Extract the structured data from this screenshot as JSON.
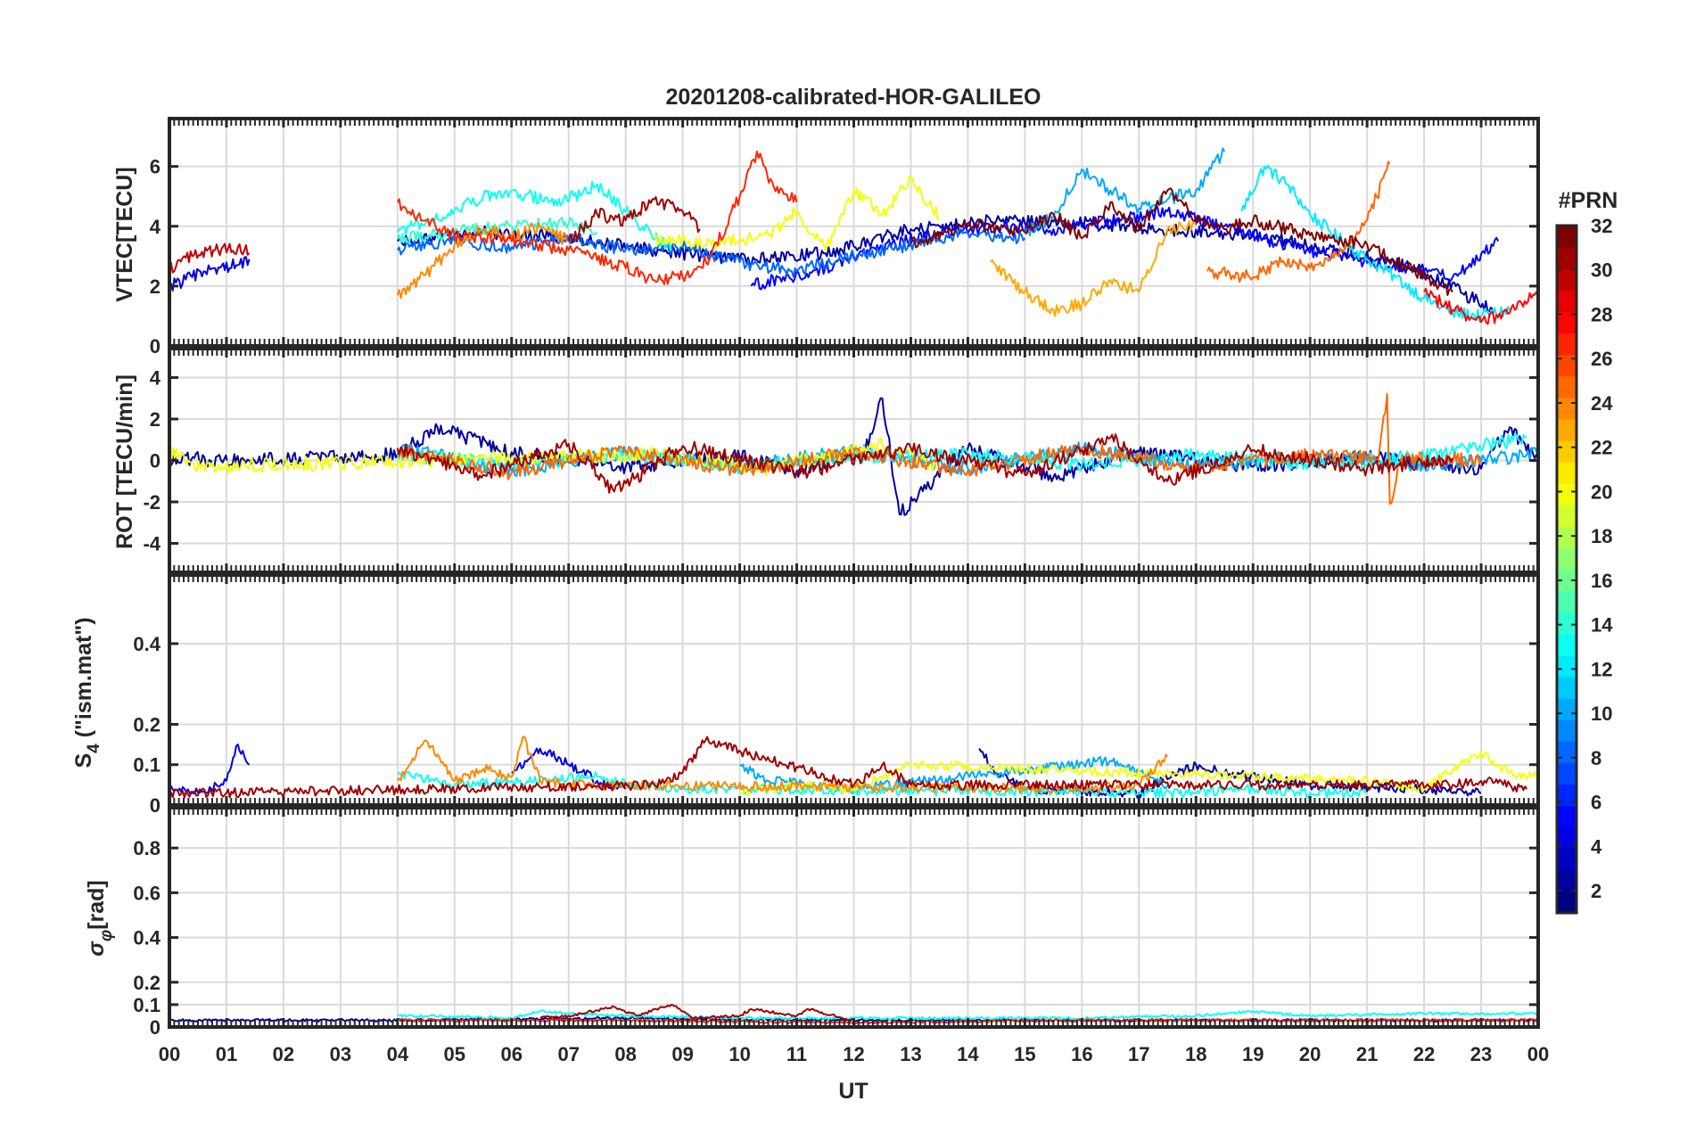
{
  "title": "20201208-calibrated-HOR-GALILEO",
  "chart_data": [
    {
      "type": "line",
      "panel": "vtec",
      "ylabel": "VTEC[TECU]",
      "xlabel": "",
      "xlim": [
        0,
        24
      ],
      "ylim": [
        0,
        7.6
      ],
      "yticks": [
        0,
        2,
        4,
        6
      ],
      "yticklabels": [
        "0",
        "2",
        "4",
        "6"
      ],
      "grid": true,
      "series": [
        {
          "name": "PRN 2",
          "prn": 2,
          "x": [
            4.0,
            5.5,
            7.0,
            8.5,
            10.0,
            11.5,
            13.0,
            14.5,
            16.0,
            17.5,
            19.0,
            20.5,
            22.0,
            23.2
          ],
          "y": [
            3.5,
            3.8,
            3.6,
            3.2,
            2.9,
            3.1,
            3.9,
            4.2,
            4.1,
            3.9,
            3.7,
            3.2,
            2.5,
            1.2
          ]
        },
        {
          "name": "PRN 4",
          "prn": 4,
          "x": [
            0.0,
            0.4,
            0.8,
            1.2,
            1.4
          ],
          "y": [
            2.0,
            2.3,
            2.6,
            2.7,
            2.9
          ]
        },
        {
          "name": "PRN 5",
          "prn": 5,
          "x": [
            10.2,
            11.5,
            12.5,
            13.5,
            14.5,
            15.5,
            16.5,
            17.5,
            18.5,
            19.5,
            20.5,
            21.5,
            22.5,
            23.3
          ],
          "y": [
            2.0,
            2.6,
            3.3,
            3.8,
            4.0,
            3.9,
            4.2,
            4.5,
            4.0,
            3.4,
            3.0,
            2.6,
            2.3,
            3.5
          ]
        },
        {
          "name": "PRN 8",
          "prn": 8,
          "x": [
            4.0,
            5.0,
            6.0,
            7.0,
            8.0,
            9.0,
            10.0,
            11.0,
            12.0,
            13.0,
            14.0,
            15.0
          ],
          "y": [
            3.2,
            3.5,
            3.3,
            3.6,
            3.2,
            3.3,
            2.8,
            2.5,
            3.0,
            3.4,
            3.8,
            3.6
          ]
        },
        {
          "name": "PRN 10",
          "prn": 10,
          "x": [
            15.0,
            15.5,
            16.0,
            16.5,
            17.0,
            17.5,
            18.0,
            18.5
          ],
          "y": [
            3.8,
            4.3,
            5.9,
            5.2,
            4.6,
            4.9,
            5.2,
            6.5
          ]
        },
        {
          "name": "PRN 12",
          "prn": 12,
          "x": [
            18.8,
            19.2,
            19.6,
            20.0,
            20.5,
            21.0,
            21.5,
            22.0,
            22.5,
            23.0,
            23.5
          ],
          "y": [
            4.5,
            6.0,
            5.4,
            4.4,
            3.6,
            2.9,
            2.3,
            1.6,
            1.1,
            1.0,
            1.2
          ]
        },
        {
          "name": "PRN 13",
          "prn": 13,
          "x": [
            4.0,
            4.8,
            5.5,
            6.0,
            6.8,
            7.5,
            8.0,
            8.8
          ],
          "y": [
            3.8,
            4.3,
            5.0,
            5.2,
            4.7,
            5.4,
            4.5,
            3.2
          ]
        },
        {
          "name": "PRN 14",
          "prn": 14,
          "x": [
            4.0,
            5.0,
            6.0,
            7.0,
            7.5
          ],
          "y": [
            3.6,
            3.8,
            4.0,
            4.1,
            3.8
          ]
        },
        {
          "name": "PRN 20",
          "prn": 20,
          "x": [
            8.5,
            9.5,
            10.5,
            11.0,
            11.5,
            12.0,
            12.5,
            13.0,
            13.5
          ],
          "y": [
            3.6,
            3.4,
            3.7,
            4.5,
            3.2,
            5.2,
            4.4,
            5.6,
            4.3
          ]
        },
        {
          "name": "PRN 23",
          "prn": 23,
          "x": [
            14.4,
            15.0,
            15.5,
            16.0,
            16.5,
            17.0,
            17.5,
            18.0
          ],
          "y": [
            2.8,
            1.8,
            1.2,
            1.4,
            2.2,
            1.8,
            3.9,
            4.1
          ]
        },
        {
          "name": "PRN 24",
          "prn": 24,
          "x": [
            4.0,
            4.5,
            5.0,
            5.5,
            6.0,
            6.5,
            7.0
          ],
          "y": [
            1.7,
            2.4,
            3.4,
            3.9,
            3.6,
            4.0,
            3.5
          ]
        },
        {
          "name": "PRN 25",
          "prn": 25,
          "x": [
            18.2,
            19.0,
            19.5,
            20.0,
            20.5,
            21.0,
            21.4
          ],
          "y": [
            2.5,
            2.3,
            2.8,
            2.6,
            3.0,
            4.2,
            6.1
          ]
        },
        {
          "name": "PRN 27",
          "prn": 27,
          "x": [
            4.0,
            4.5,
            5.0,
            6.0,
            7.0,
            8.0,
            8.5,
            9.0,
            9.5,
            10.0,
            10.3,
            10.6,
            11.0
          ],
          "y": [
            4.8,
            4.2,
            3.7,
            3.5,
            3.2,
            2.6,
            2.2,
            2.3,
            3.0,
            5.0,
            6.5,
            5.3,
            4.8
          ]
        },
        {
          "name": "PRN 28",
          "prn": 28,
          "x": [
            22.0,
            22.5,
            23.0,
            23.5,
            24.0
          ],
          "y": [
            1.8,
            1.2,
            0.8,
            1.1,
            1.8
          ]
        },
        {
          "name": "PRN 30",
          "prn": 30,
          "x": [
            0.0,
            0.4,
            0.8,
            1.2,
            1.4
          ],
          "y": [
            2.6,
            3.0,
            3.2,
            3.3,
            3.1
          ]
        },
        {
          "name": "PRN 31",
          "prn": 31,
          "x": [
            7.0,
            7.5,
            8.0,
            8.5,
            9.0,
            9.3
          ],
          "y": [
            3.5,
            4.4,
            4.2,
            4.9,
            4.5,
            3.9
          ]
        },
        {
          "name": "PRN 32",
          "prn": 32,
          "x": [
            13.0,
            14.0,
            15.0,
            15.5,
            16.0,
            16.5,
            17.0,
            17.5,
            18.0,
            18.5,
            19.0,
            20.0,
            21.0,
            22.0,
            22.5
          ],
          "y": [
            3.4,
            4.1,
            3.8,
            4.4,
            3.6,
            4.8,
            3.9,
            5.2,
            4.3,
            3.9,
            4.2,
            3.7,
            3.4,
            2.3,
            1.8
          ]
        }
      ]
    },
    {
      "type": "line",
      "panel": "rot",
      "ylabel": "ROT [TECU/min]",
      "xlim": [
        0,
        24
      ],
      "ylim": [
        -5.4,
        5.4
      ],
      "yticks": [
        -4,
        -2,
        0,
        2,
        4
      ],
      "yticklabels": [
        "-4",
        "-2",
        "0",
        "2",
        "4"
      ],
      "grid": true,
      "series": [
        {
          "name": "PRN 2",
          "prn": 2,
          "x": [
            0.0,
            1.4,
            4.0,
            4.7,
            6.0,
            8.0,
            10.0,
            11.0,
            12.2,
            12.5,
            12.8,
            14.0,
            15.5,
            17.0,
            19.0,
            21.0,
            23.0,
            23.5,
            24.0
          ],
          "y": [
            0.1,
            0.0,
            0.3,
            1.6,
            0.4,
            -0.3,
            0.2,
            -0.5,
            0.5,
            3.0,
            -2.6,
            0.6,
            -0.8,
            0.4,
            -0.3,
            0.2,
            -0.4,
            1.6,
            0.0
          ]
        },
        {
          "name": "PRN 10",
          "prn": 10,
          "x": [
            4.0,
            6.0,
            8.0,
            10.0,
            12.0,
            14.0,
            16.0,
            18.0,
            20.0,
            22.0,
            24.0
          ],
          "y": [
            0.6,
            -0.5,
            0.4,
            -0.3,
            0.5,
            -0.4,
            0.6,
            -0.3,
            0.2,
            -0.2,
            0.3
          ]
        },
        {
          "name": "PRN 13",
          "prn": 13,
          "x": [
            4.0,
            6.0,
            8.0,
            10.0,
            12.0,
            14.0,
            16.0,
            18.0,
            20.0,
            22.0,
            23.8
          ],
          "y": [
            0.3,
            -0.2,
            0.3,
            -0.3,
            0.2,
            0.3,
            -0.2,
            0.3,
            -0.2,
            0.2,
            1.1
          ]
        },
        {
          "name": "PRN 20",
          "prn": 20,
          "x": [
            0.0,
            0.6,
            8.5,
            10.5,
            12.5,
            13.5
          ],
          "y": [
            0.4,
            -0.3,
            0.3,
            -0.4,
            0.8,
            -0.5
          ]
        },
        {
          "name": "PRN 25",
          "prn": 25,
          "x": [
            4.0,
            6.0,
            8.0,
            10.0,
            12.0,
            14.0,
            16.0,
            18.0,
            20.0,
            21.2,
            21.35,
            21.4,
            21.6,
            23.0
          ],
          "y": [
            0.5,
            -0.6,
            0.5,
            -0.5,
            0.4,
            -0.5,
            0.6,
            -0.4,
            0.3,
            0.1,
            3.2,
            -2.1,
            0.1,
            0.0
          ]
        },
        {
          "name": "PRN 31",
          "prn": 31,
          "x": [
            4.0,
            5.5,
            7.0,
            7.8,
            9.0,
            11.0,
            13.0,
            15.0,
            16.5,
            17.5,
            19.0,
            21.0,
            22.5
          ],
          "y": [
            0.6,
            -0.7,
            0.8,
            -1.5,
            0.7,
            -0.6,
            0.6,
            -0.7,
            1.1,
            -1.0,
            0.5,
            -0.4,
            0.1
          ]
        }
      ]
    },
    {
      "type": "line",
      "panel": "s4",
      "ylabel": "S4 (\"ism.mat\")",
      "xlim": [
        0,
        24
      ],
      "ylim": [
        0,
        0.57
      ],
      "yticks": [
        0,
        0.1,
        0.2,
        0.4
      ],
      "yticklabels": [
        "0",
        "0.1",
        "0.2",
        "0.4"
      ],
      "grid": true,
      "series": [
        {
          "name": "PRN 4",
          "prn": 4,
          "x": [
            0.0,
            0.5,
            1.0,
            1.2,
            1.4
          ],
          "y": [
            0.05,
            0.03,
            0.06,
            0.15,
            0.1
          ]
        },
        {
          "name": "PRN 4b",
          "prn": 4,
          "x": [
            6.0,
            6.5,
            7.0,
            7.5,
            8.0
          ],
          "y": [
            0.08,
            0.14,
            0.1,
            0.06,
            0.04
          ]
        },
        {
          "name": "PRN 2",
          "prn": 2,
          "x": [
            14.2,
            14.5,
            15.0,
            17.0,
            18.0,
            18.5,
            19.5,
            20.0,
            22.0,
            23.0
          ],
          "y": [
            0.14,
            0.08,
            0.04,
            0.03,
            0.1,
            0.08,
            0.06,
            0.05,
            0.04,
            0.03
          ]
        },
        {
          "name": "PRN 10",
          "prn": 10,
          "x": [
            10.0,
            10.5,
            12.0,
            16.5,
            17.0,
            17.5
          ],
          "y": [
            0.1,
            0.06,
            0.04,
            0.11,
            0.08,
            0.05
          ]
        },
        {
          "name": "PRN 13",
          "prn": 13,
          "x": [
            4.0,
            5.0,
            6.0,
            7.5,
            8.0,
            9.0,
            18.0,
            19.0,
            20.0,
            21.0
          ],
          "y": [
            0.08,
            0.05,
            0.06,
            0.07,
            0.05,
            0.04,
            0.03,
            0.04,
            0.03,
            0.03
          ]
        },
        {
          "name": "PRN 20",
          "prn": 20,
          "x": [
            10.0,
            11.0,
            12.0,
            13.0,
            21.0,
            22.0,
            23.0,
            23.5,
            24.0
          ],
          "y": [
            0.03,
            0.05,
            0.04,
            0.1,
            0.06,
            0.04,
            0.13,
            0.08,
            0.07
          ]
        },
        {
          "name": "PRN 24",
          "prn": 24,
          "x": [
            4.0,
            4.5,
            5.0,
            5.5,
            6.0,
            6.2,
            6.5,
            7.0,
            16.0,
            17.0,
            17.5
          ],
          "y": [
            0.06,
            0.16,
            0.06,
            0.09,
            0.07,
            0.17,
            0.06,
            0.05,
            0.04,
            0.05,
            0.12
          ]
        },
        {
          "name": "PRN 31",
          "prn": 31,
          "x": [
            0.0,
            1.0,
            8.5,
            9.0,
            9.4,
            12.0,
            12.5,
            13.0,
            22.5,
            23.0,
            23.8
          ],
          "y": [
            0.03,
            0.03,
            0.05,
            0.08,
            0.16,
            0.05,
            0.1,
            0.05,
            0.05,
            0.06,
            0.04
          ]
        }
      ]
    },
    {
      "type": "line",
      "panel": "sigma_phi",
      "ylabel": "σφ[rad]",
      "xlim": [
        0,
        24
      ],
      "ylim": [
        0,
        0.98
      ],
      "yticks": [
        0,
        0.1,
        0.2,
        0.4,
        0.6,
        0.8
      ],
      "yticklabels": [
        "0",
        "0.1",
        "0.2",
        "0.4",
        "0.6",
        "0.8"
      ],
      "grid": true,
      "series": [
        {
          "name": "PRN 2",
          "prn": 2,
          "x": [
            0.0,
            1.4,
            4.0,
            8.0,
            12.0,
            16.0,
            20.0,
            24.0
          ],
          "y": [
            0.03,
            0.03,
            0.03,
            0.04,
            0.03,
            0.03,
            0.03,
            0.03
          ]
        },
        {
          "name": "PRN 13",
          "prn": 13,
          "x": [
            4.0,
            6.0,
            6.5,
            7.0,
            8.0,
            10.0,
            16.0,
            18.0,
            19.0,
            20.0,
            22.0,
            24.0
          ],
          "y": [
            0.05,
            0.04,
            0.07,
            0.06,
            0.05,
            0.04,
            0.04,
            0.05,
            0.07,
            0.05,
            0.06,
            0.06
          ]
        },
        {
          "name": "PRN 31",
          "prn": 31,
          "x": [
            6.5,
            7.0,
            7.8,
            8.2,
            8.8,
            9.2,
            10.0,
            10.2,
            11.0,
            11.2,
            12.0
          ],
          "y": [
            0.04,
            0.05,
            0.09,
            0.05,
            0.1,
            0.04,
            0.05,
            0.08,
            0.05,
            0.08,
            0.03
          ]
        },
        {
          "name": "PRN 27",
          "prn": 27,
          "x": [
            4.0,
            8.0,
            12.0,
            16.0,
            20.0,
            24.0
          ],
          "y": [
            0.03,
            0.03,
            0.02,
            0.03,
            0.03,
            0.03
          ]
        }
      ]
    }
  ],
  "x_axis": {
    "label": "UT",
    "ticks": [
      0,
      1,
      2,
      3,
      4,
      5,
      6,
      7,
      8,
      9,
      10,
      11,
      12,
      13,
      14,
      15,
      16,
      17,
      18,
      19,
      20,
      21,
      22,
      23,
      24
    ],
    "tick_labels": [
      "00",
      "01",
      "02",
      "03",
      "04",
      "05",
      "06",
      "07",
      "08",
      "09",
      "10",
      "11",
      "12",
      "13",
      "14",
      "15",
      "16",
      "17",
      "18",
      "19",
      "20",
      "21",
      "22",
      "23",
      "00"
    ]
  },
  "colorbar": {
    "label": "#PRN",
    "min": 1,
    "max": 32,
    "ticks": [
      2,
      4,
      6,
      8,
      10,
      12,
      14,
      16,
      18,
      20,
      22,
      24,
      26,
      28,
      30,
      32
    ],
    "tick_labels": [
      "2",
      "4",
      "6",
      "8",
      "10",
      "12",
      "14",
      "16",
      "18",
      "20",
      "22",
      "24",
      "26",
      "28",
      "30",
      "32"
    ],
    "colormap": "jet"
  },
  "colors": {
    "axis": "#262626",
    "grid": "#dadada",
    "background": "#ffffff"
  }
}
